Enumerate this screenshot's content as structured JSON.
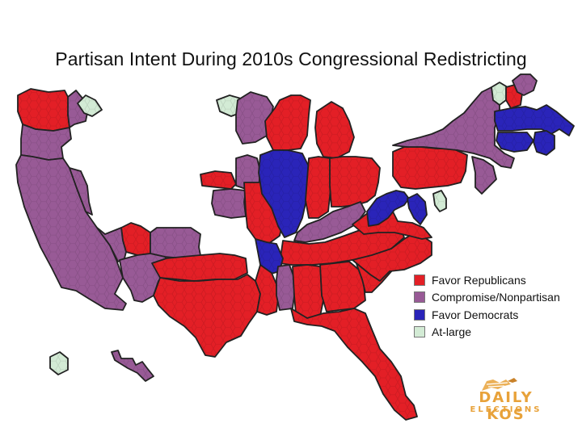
{
  "title": "Partisan Intent During 2010s Congressional Redistricting",
  "colors": {
    "republican": "#e31f26",
    "compromise": "#985a96",
    "democratic": "#2a24b9",
    "at_large": "#d3ebd5",
    "border": "#222222"
  },
  "legend": {
    "items": [
      {
        "label": "Favor Republicans",
        "category": "republican"
      },
      {
        "label": "Compromise/Nonpartisan",
        "category": "compromise"
      },
      {
        "label": "Favor Democrats",
        "category": "democratic"
      },
      {
        "label": "At-large",
        "category": "at_large"
      }
    ]
  },
  "logo": {
    "line1": "DAILY KOS",
    "line2": "ELECTIONS"
  },
  "states": [
    {
      "name": "Washington",
      "category": "republican"
    },
    {
      "name": "Oregon",
      "category": "compromise"
    },
    {
      "name": "Idaho",
      "category": "compromise"
    },
    {
      "name": "Montana",
      "category": "at_large"
    },
    {
      "name": "California",
      "category": "compromise"
    },
    {
      "name": "Nevada",
      "category": "compromise"
    },
    {
      "name": "Utah",
      "category": "republican"
    },
    {
      "name": "Colorado",
      "category": "compromise"
    },
    {
      "name": "Arizona",
      "category": "compromise"
    },
    {
      "name": "New Mexico",
      "category": "compromise"
    },
    {
      "name": "Alaska",
      "category": "at_large"
    },
    {
      "name": "Hawaii",
      "category": "compromise"
    },
    {
      "name": "North Dakota",
      "category": "at_large"
    },
    {
      "name": "Minnesota",
      "category": "compromise"
    },
    {
      "name": "Wisconsin",
      "category": "republican"
    },
    {
      "name": "Michigan",
      "category": "republican"
    },
    {
      "name": "Iowa",
      "category": "compromise"
    },
    {
      "name": "Nebraska",
      "category": "republican"
    },
    {
      "name": "Kansas",
      "category": "compromise"
    },
    {
      "name": "Missouri",
      "category": "republican"
    },
    {
      "name": "Illinois",
      "category": "democratic"
    },
    {
      "name": "Indiana",
      "category": "republican"
    },
    {
      "name": "Ohio",
      "category": "republican"
    },
    {
      "name": "Kentucky",
      "category": "compromise"
    },
    {
      "name": "Tennessee",
      "category": "republican"
    },
    {
      "name": "Arkansas",
      "category": "democratic"
    },
    {
      "name": "Oklahoma",
      "category": "republican"
    },
    {
      "name": "Texas",
      "category": "republican"
    },
    {
      "name": "Louisiana",
      "category": "republican"
    },
    {
      "name": "Mississippi",
      "category": "compromise"
    },
    {
      "name": "Alabama",
      "category": "republican"
    },
    {
      "name": "Georgia",
      "category": "republican"
    },
    {
      "name": "Florida",
      "category": "republican"
    },
    {
      "name": "South Carolina",
      "category": "republican"
    },
    {
      "name": "North Carolina",
      "category": "republican"
    },
    {
      "name": "Virginia",
      "category": "republican"
    },
    {
      "name": "West Virginia",
      "category": "democratic"
    },
    {
      "name": "Maryland",
      "category": "democratic"
    },
    {
      "name": "Delaware",
      "category": "at_large"
    },
    {
      "name": "Pennsylvania",
      "category": "republican"
    },
    {
      "name": "New York",
      "category": "compromise"
    },
    {
      "name": "New Jersey",
      "category": "compromise"
    },
    {
      "name": "Massachusetts",
      "category": "democratic"
    },
    {
      "name": "Connecticut",
      "category": "democratic"
    },
    {
      "name": "Rhode Island",
      "category": "democratic"
    },
    {
      "name": "Vermont",
      "category": "at_large"
    },
    {
      "name": "New Hampshire",
      "category": "republican"
    },
    {
      "name": "Maine",
      "category": "compromise"
    }
  ]
}
